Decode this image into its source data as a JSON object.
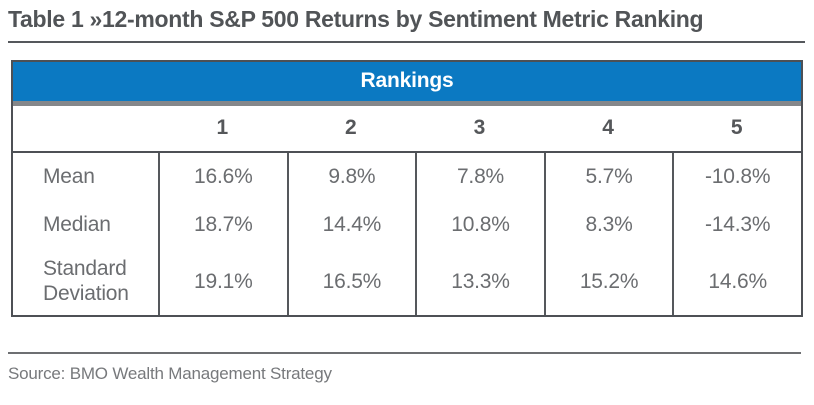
{
  "title": "Table 1 »12-month S&P 500 Returns by Sentiment Metric Ranking",
  "table": {
    "header": "Rankings",
    "rank_labels": [
      "1",
      "2",
      "3",
      "4",
      "5"
    ],
    "rows": [
      {
        "label": "Mean",
        "values": [
          "16.6%",
          "9.8%",
          "7.8%",
          "5.7%",
          "-10.8%"
        ]
      },
      {
        "label": "Median",
        "values": [
          "18.7%",
          "14.4%",
          "10.8%",
          "8.3%",
          "-14.3%"
        ]
      },
      {
        "label": "Standard Deviation",
        "values": [
          "19.1%",
          "16.5%",
          "13.3%",
          "15.2%",
          "14.6%"
        ]
      }
    ]
  },
  "source": "Source: BMO Wealth Management Strategy",
  "colors": {
    "header_blue": "#0b79c2",
    "border_dark": "#4d5055",
    "separator_gray": "#85878a",
    "title_text": "#515457",
    "data_text": "#6b6d70",
    "source_text": "#77797c"
  }
}
